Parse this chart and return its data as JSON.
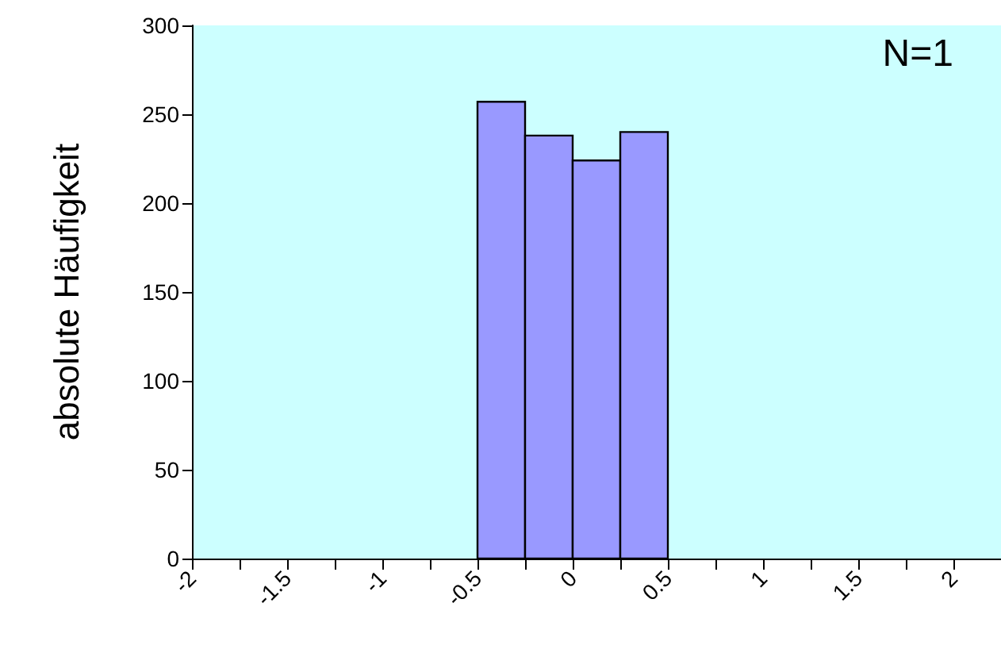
{
  "chart_data": {
    "type": "histogram",
    "ylabel": "absolute Häufigkeit",
    "annotations": [
      "N=1"
    ],
    "bins": [
      -0.5,
      -0.25,
      0,
      0.25,
      0.5
    ],
    "values": [
      257,
      238,
      224,
      240
    ],
    "color": "#9999ff",
    "xlim": [
      -2,
      2.25
    ],
    "xticks": [
      -2,
      {
        "value": -1.75,
        "label": null
      },
      -1.5,
      {
        "value": -1.25,
        "label": null
      },
      -1,
      {
        "value": -0.75,
        "label": null
      },
      -0.5,
      {
        "value": -0.25,
        "label": null
      },
      0,
      {
        "value": 0.25,
        "label": null
      },
      0.5,
      {
        "value": 0.75,
        "label": null
      },
      1,
      {
        "value": 1.25,
        "label": null
      },
      1.5,
      {
        "value": 1.75,
        "label": null
      },
      2
    ],
    "ylim": [
      0,
      300
    ],
    "yticks": [
      0,
      50,
      100,
      150,
      200,
      250,
      300
    ],
    "grid": false
  }
}
